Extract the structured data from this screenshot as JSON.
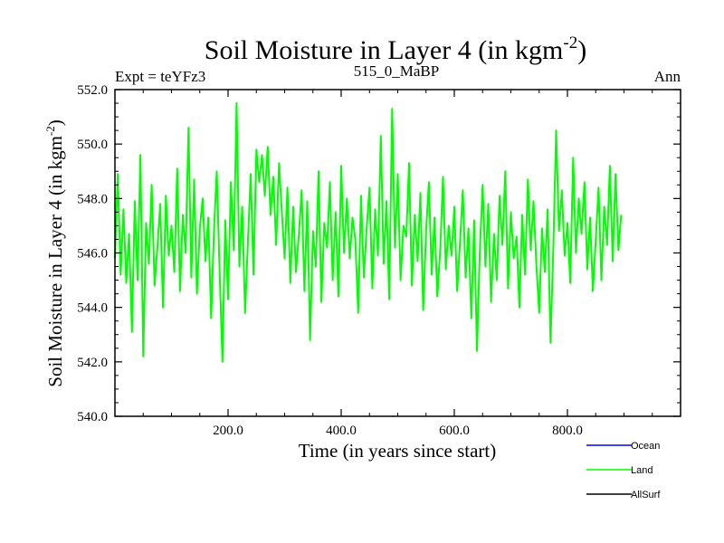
{
  "chart_data": {
    "type": "line",
    "title": "Soil Moisture in Layer 4 (in kgm",
    "title_sup": "-2",
    "title_end": ")",
    "subtitle_left": "Expt = teYFz3",
    "subtitle_center": "515_0_MaBP",
    "subtitle_right": "Ann",
    "xlabel": "Time (in years since start)",
    "ylabel": "Soil Moisture in Layer 4 (in kgm",
    "ylabel_sup": "-2",
    "ylabel_end": ")",
    "xlim": [
      0,
      1000
    ],
    "ylim": [
      540.0,
      552.0
    ],
    "x_ticks": [
      200,
      400,
      600,
      800
    ],
    "x_tick_labels": [
      "200.0",
      "400.0",
      "600.0",
      "800.0"
    ],
    "y_ticks": [
      540,
      542,
      544,
      546,
      548,
      550,
      552
    ],
    "y_tick_labels": [
      "540.0",
      "542.0",
      "544.0",
      "546.0",
      "548.0",
      "550.0",
      "552.0"
    ],
    "series": [
      {
        "name": "Land",
        "color": "#00ff00",
        "x_start": 0,
        "x_step": 5,
        "values": [
          545.8,
          548.9,
          545.2,
          547.6,
          544.9,
          546.7,
          543.1,
          547.9,
          545.0,
          549.6,
          542.2,
          547.1,
          545.6,
          548.5,
          544.8,
          546.2,
          547.8,
          544.0,
          548.1,
          545.9,
          547.0,
          545.3,
          549.1,
          544.6,
          547.4,
          546.0,
          550.6,
          545.1,
          548.7,
          544.5,
          546.9,
          548.0,
          545.7,
          547.3,
          543.6,
          546.8,
          549.0,
          545.4,
          542.0,
          547.2,
          544.3,
          548.6,
          546.1,
          551.5,
          545.5,
          547.7,
          543.8,
          546.4,
          548.9,
          545.2,
          549.8,
          548.6,
          549.6,
          548.1,
          549.9,
          547.4,
          548.8,
          546.3,
          549.3,
          547.5,
          545.8,
          548.4,
          544.9,
          547.7,
          545.3,
          546.6,
          548.3,
          544.6,
          547.9,
          542.8,
          546.8,
          545.5,
          549.0,
          544.2,
          547.1,
          546.2,
          548.6,
          545.0,
          547.5,
          544.4,
          549.2,
          546.0,
          548.0,
          545.8,
          547.3,
          546.5,
          543.8,
          548.1,
          545.1,
          546.9,
          548.4,
          544.7,
          547.6,
          545.9,
          550.3,
          545.6,
          547.9,
          544.3,
          551.3,
          546.2,
          548.9,
          545.0,
          547.0,
          546.6,
          549.3,
          544.8,
          547.4,
          545.7,
          548.2,
          543.9,
          546.8,
          548.6,
          545.2,
          547.3,
          544.4,
          546.1,
          548.8,
          545.4,
          547.0,
          545.9,
          547.7,
          544.6,
          546.4,
          548.3,
          545.1,
          546.9,
          543.6,
          547.2,
          542.4,
          546.0,
          548.5,
          545.5,
          547.8,
          544.2,
          546.7,
          545.0,
          548.1,
          546.3,
          549.0,
          544.7,
          547.5,
          545.8,
          546.6,
          544.0,
          547.4,
          545.2,
          548.7,
          546.1,
          547.9,
          545.6,
          543.8,
          546.9,
          545.3,
          547.6,
          542.7,
          546.2,
          550.5,
          546.8,
          548.3,
          545.9,
          547.1,
          544.9,
          549.5,
          546.0,
          548.0,
          546.7,
          548.6,
          545.4,
          547.3,
          544.6,
          546.5,
          548.4,
          545.0,
          547.7,
          546.3,
          549.2,
          545.7,
          548.9,
          546.1,
          547.4
        ]
      },
      {
        "name": "Ocean",
        "color": "#0000ff",
        "values": []
      },
      {
        "name": "AllSurf",
        "color": "#000000",
        "values": []
      }
    ],
    "legend": {
      "position": "bottom-right",
      "entries": [
        {
          "label": "Ocean",
          "color": "#0000ff"
        },
        {
          "label": "Land",
          "color": "#00ff00"
        },
        {
          "label": "AllSurf",
          "color": "#000000"
        }
      ]
    }
  }
}
